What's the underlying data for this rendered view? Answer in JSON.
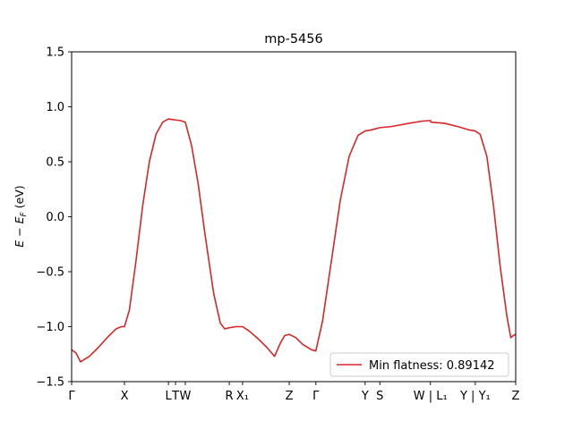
{
  "chart_data": {
    "type": "line",
    "title": "mp-5456",
    "xlabel": "",
    "ylabel": "E − E_F (eV)",
    "ylim": [
      -1.5,
      1.5
    ],
    "yticks": [
      -1.5,
      -1.0,
      -0.5,
      0.0,
      0.5,
      1.0,
      1.5
    ],
    "ytick_labels": [
      "−1.5",
      "−1.0",
      "−0.5",
      "0.0",
      "0.5",
      "1.0",
      "1.5"
    ],
    "xlim": [
      0,
      1
    ],
    "grid": false,
    "legend_position": "lower-right",
    "kpoint_labels": [
      {
        "label": "Γ",
        "x": 0.0
      },
      {
        "label": "X",
        "x": 0.119
      },
      {
        "label": "L",
        "x": 0.218
      },
      {
        "label": "T",
        "x": 0.234
      },
      {
        "label": "W",
        "x": 0.256
      },
      {
        "label": "R",
        "x": 0.355
      },
      {
        "label": "X₁",
        "x": 0.385
      },
      {
        "label": "Z",
        "x": 0.49
      },
      {
        "label": "Γ",
        "x": 0.55
      },
      {
        "label": "Y",
        "x": 0.661
      },
      {
        "label": "S",
        "x": 0.694
      },
      {
        "label": "W | L₁",
        "x": 0.808
      },
      {
        "label": "Y | Y₁",
        "x": 0.909
      },
      {
        "label": "Z",
        "x": 1.0
      }
    ],
    "series": [
      {
        "name": "Min flatness: 0.89142",
        "color": "#d62728",
        "points": [
          [
            0.0,
            -1.21
          ],
          [
            0.01,
            -1.24
          ],
          [
            0.02,
            -1.32
          ],
          [
            0.04,
            -1.27
          ],
          [
            0.06,
            -1.19
          ],
          [
            0.08,
            -1.1
          ],
          [
            0.1,
            -1.02
          ],
          [
            0.112,
            -1.0
          ],
          [
            0.119,
            -1.0
          ],
          [
            0.13,
            -0.85
          ],
          [
            0.145,
            -0.4
          ],
          [
            0.16,
            0.1
          ],
          [
            0.175,
            0.5
          ],
          [
            0.19,
            0.75
          ],
          [
            0.205,
            0.86
          ],
          [
            0.218,
            0.89
          ],
          [
            0.234,
            0.88
          ],
          [
            0.245,
            0.875
          ],
          [
            0.256,
            0.86
          ],
          [
            0.27,
            0.65
          ],
          [
            0.285,
            0.3
          ],
          [
            0.3,
            -0.15
          ],
          [
            0.32,
            -0.7
          ],
          [
            0.335,
            -0.97
          ],
          [
            0.345,
            -1.02
          ],
          [
            0.355,
            -1.01
          ],
          [
            0.37,
            -1.0
          ],
          [
            0.385,
            -1.0
          ],
          [
            0.4,
            -1.04
          ],
          [
            0.42,
            -1.11
          ],
          [
            0.44,
            -1.19
          ],
          [
            0.457,
            -1.27
          ],
          [
            0.47,
            -1.15
          ],
          [
            0.48,
            -1.08
          ],
          [
            0.49,
            -1.07
          ],
          [
            0.505,
            -1.1
          ],
          [
            0.52,
            -1.16
          ],
          [
            0.54,
            -1.21
          ],
          [
            0.55,
            -1.22
          ],
          [
            0.565,
            -0.95
          ],
          [
            0.585,
            -0.4
          ],
          [
            0.605,
            0.15
          ],
          [
            0.625,
            0.55
          ],
          [
            0.645,
            0.74
          ],
          [
            0.661,
            0.78
          ],
          [
            0.675,
            0.79
          ],
          [
            0.694,
            0.81
          ],
          [
            0.72,
            0.82
          ],
          [
            0.76,
            0.85
          ],
          [
            0.79,
            0.87
          ],
          [
            0.808,
            0.875
          ],
          [
            0.809,
            0.86
          ],
          [
            0.84,
            0.85
          ],
          [
            0.87,
            0.82
          ],
          [
            0.895,
            0.79
          ],
          [
            0.909,
            0.78
          ],
          [
            0.92,
            0.75
          ],
          [
            0.935,
            0.55
          ],
          [
            0.95,
            0.1
          ],
          [
            0.965,
            -0.45
          ],
          [
            0.98,
            -0.9
          ],
          [
            0.989,
            -1.1
          ],
          [
            0.995,
            -1.08
          ],
          [
            1.0,
            -1.07
          ]
        ]
      }
    ]
  }
}
